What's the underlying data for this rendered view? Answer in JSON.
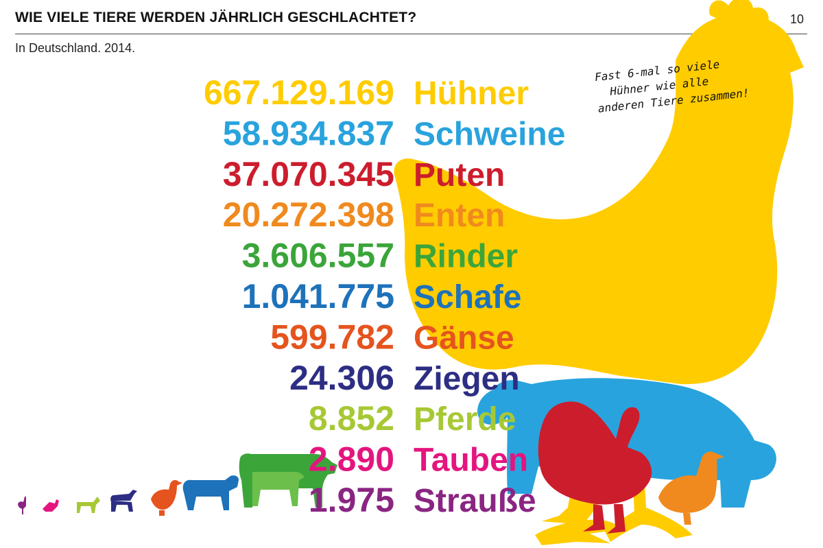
{
  "header": {
    "title": "WIE VIELE TIERE WERDEN JÄHRLICH GESCHLACHTET?",
    "page_number": "10",
    "subtitle": "In Deutschland. 2014."
  },
  "note": {
    "line1": "Fast 6-mal so viele",
    "line2": "Hühner wie alle",
    "line3": "anderen Tiere zusammen!"
  },
  "colors": {
    "Hühner": "#FFCC00",
    "Schweine": "#29A3DD",
    "Puten": "#CC1D2D",
    "Enten": "#F08A1E",
    "Rinder": "#3BA53A",
    "Schafe": "#1D72BA",
    "Gänse": "#E5541E",
    "Ziegen": "#2D2E83",
    "Pferde": "#A7C835",
    "Tauben": "#E4157E",
    "Strauße": "#8A2582"
  },
  "chart_data": {
    "type": "table",
    "categories": [
      "Hühner",
      "Schweine",
      "Puten",
      "Enten",
      "Rinder",
      "Schafe",
      "Gänse",
      "Ziegen",
      "Pferde",
      "Tauben",
      "Strauße"
    ],
    "values": [
      667129169,
      58934837,
      37070345,
      20272398,
      3606557,
      1041775,
      599782,
      24306,
      8852,
      2890,
      1975
    ],
    "value_labels": [
      "667.129.169",
      "58.934.837",
      "37.070.345",
      "20.272.398",
      "3.606.557",
      "1.041.775",
      "599.782",
      "24.306",
      "8.852",
      "2.890",
      "1.975"
    ],
    "icons": [
      "chicken-icon",
      "pig-icon",
      "turkey-icon",
      "duck-icon",
      "cow-icon",
      "sheep-icon",
      "goose-icon",
      "goat-icon",
      "horse-icon",
      "pigeon-icon",
      "ostrich-icon"
    ]
  }
}
